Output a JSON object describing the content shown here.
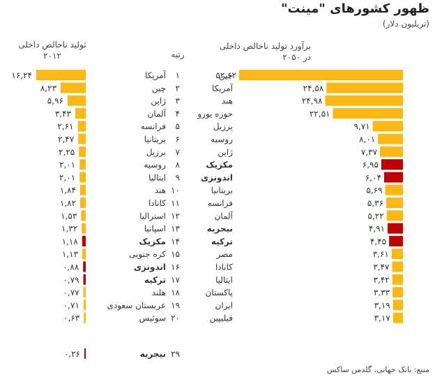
{
  "title": "ظهور کشورهای \"مینت\"",
  "subtitle": "(تریلیون دلار)",
  "source": "منبع: بانک جهانی، گلدمن ساکس",
  "chart_data": [
    {
      "type": "bar",
      "title": "برآورد تولید ناخالص داخلی در ۲۰۵۰",
      "orientation": "horizontal",
      "categories": [
        "چین",
        "آمریکا",
        "هند",
        "حوزه یورو",
        "برزیل",
        "روسیه",
        "ژاپن",
        "مکزیک",
        "اندونزی",
        "بریتانیا",
        "فرانسه",
        "آلمان",
        "نیجریه",
        "ترکیه",
        "مصر",
        "کانادا",
        "ایتالیا",
        "پاکستان",
        "ایران",
        "فیلیپین"
      ],
      "values": [
        52.62,
        24.58,
        24.98,
        22.51,
        9.71,
        8.01,
        7.37,
        6.95,
        6.04,
        5.69,
        5.36,
        5.22,
        4.91,
        4.45,
        3.61,
        3.47,
        3.42,
        3.33,
        3.19,
        3.17
      ],
      "value_labels": [
        "۵۲,۶۲",
        "۲۴,۵۸",
        "۲۴,۹۸",
        "۲۲,۵۱",
        "۹,۷۱",
        "۸,۰۱",
        "۷,۳۷",
        "۶,۹۵",
        "۶,۰۴",
        "۵,۶۹",
        "۵,۳۶",
        "۵,۲۲",
        "۴,۹۱",
        "۴,۴۵",
        "۳,۶۱",
        "۳,۴۷",
        "۳,۴۲",
        "۳,۳۳",
        "۳,۱۹",
        "۳,۱۷"
      ],
      "highlighted": [
        false,
        false,
        false,
        false,
        false,
        false,
        false,
        true,
        true,
        false,
        false,
        false,
        true,
        true,
        false,
        false,
        false,
        false,
        false,
        false
      ]
    },
    {
      "type": "bar",
      "title": "تولید ناخالص داخلی ۲۰۱۲",
      "orientation": "horizontal",
      "categories": [
        "آمریکا",
        "چین",
        "ژاپن",
        "آلمان",
        "فرانسه",
        "بریتانیا",
        "برزیل",
        "روسیه",
        "ایتالیا",
        "هند",
        "کانادا",
        "استرالیا",
        "اسپانیا",
        "مکزیک",
        "کره جنوبی",
        "اندونزی",
        "ترکیه",
        "هلند",
        "عربستان سعودی",
        "سوئیس",
        "نیجریه"
      ],
      "values": [
        16.24,
        8.23,
        5.96,
        3.43,
        2.61,
        2.47,
        2.25,
        2.01,
        2.01,
        1.84,
        1.82,
        1.53,
        1.32,
        1.18,
        1.13,
        0.88,
        0.79,
        0.77,
        0.71,
        0.63,
        0.26
      ],
      "value_labels": [
        "۱۶,۲۴",
        "۸,۲۳",
        "۵,۹۶",
        "۳,۴۳",
        "۲,۶۱",
        "۲,۴۷",
        "۲,۲۵",
        "۲,۰۱",
        "۲,۰۱",
        "۱,۸۴",
        "۱,۸۲",
        "۱,۵۳",
        "۱,۳۲",
        "۱,۱۸",
        "۱,۱۳",
        "۰,۸۸",
        "۰,۷۹",
        "۰,۷۷",
        "۰,۷۱",
        "۰,۶۳",
        "۰,۲۶"
      ],
      "highlighted": [
        false,
        false,
        false,
        false,
        false,
        false,
        false,
        false,
        false,
        false,
        false,
        false,
        false,
        true,
        false,
        true,
        true,
        false,
        false,
        false,
        true
      ]
    }
  ],
  "ranks": [
    "۱",
    "۲",
    "۳",
    "۴",
    "۵",
    "۶",
    "۷",
    "۸",
    "۹",
    "۱۰",
    "۱۱",
    "۱۲",
    "۱۳",
    "۱۴",
    "۱۵",
    "۱۶",
    "۱۷",
    "۱۸",
    "۱۹",
    "۲۰",
    "۲۹"
  ],
  "rank_header": "رتبه",
  "colors": {
    "bar": "#FBB815",
    "highlight": "#C00000",
    "text": "#333333"
  }
}
